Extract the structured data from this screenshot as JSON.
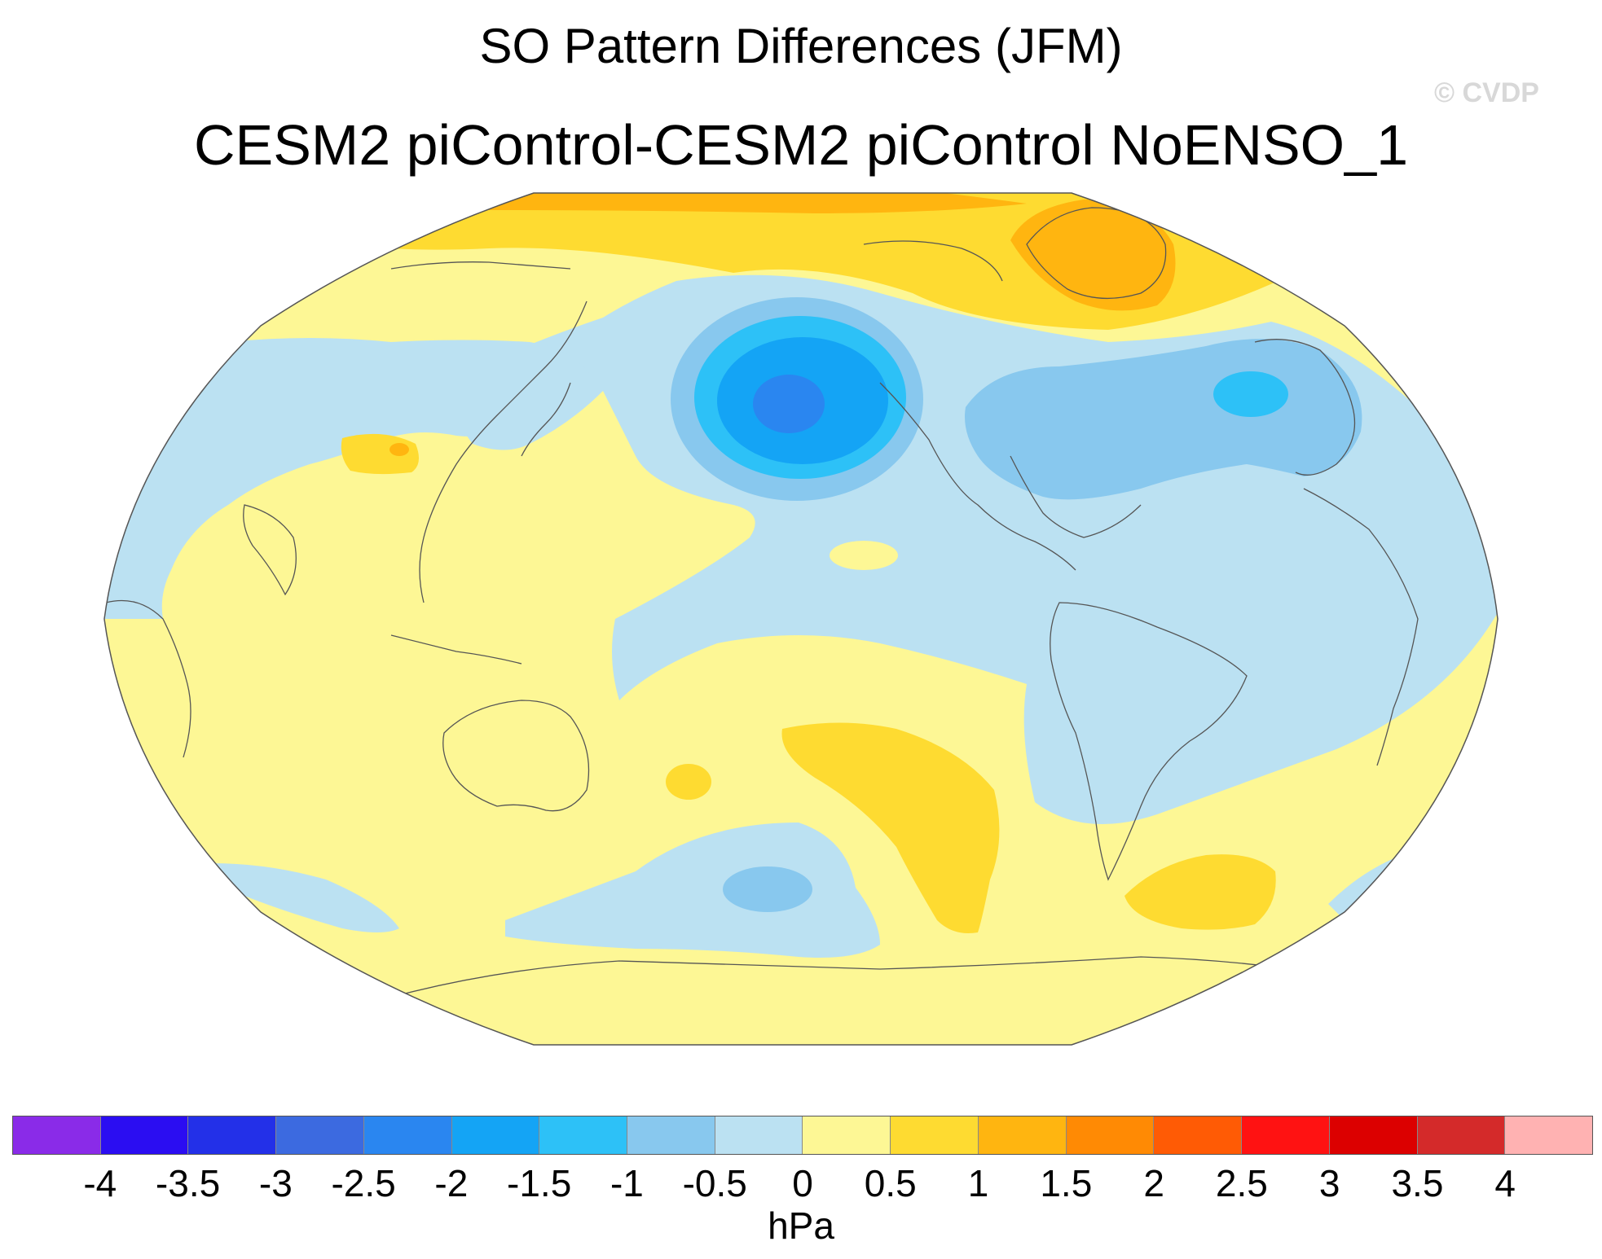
{
  "title": "SO Pattern Differences (JFM)",
  "subtitle": "CESM2 piControl-CESM2 piControl NoENSO_1",
  "watermark": "© CVDP",
  "colorbar": {
    "units": "hPa",
    "ticks": [
      "-4",
      "-3.5",
      "-3",
      "-2.5",
      "-2",
      "-1.5",
      "-1",
      "-0.5",
      "0",
      "0.5",
      "1",
      "1.5",
      "2",
      "2.5",
      "3",
      "3.5",
      "4"
    ],
    "colors": [
      "#8a2be8",
      "#2b0df2",
      "#2330e8",
      "#3c6ae0",
      "#2a86f0",
      "#14a4f5",
      "#2dc1f7",
      "#88c8ee",
      "#bbe1f2",
      "#fdf795",
      "#fedb31",
      "#ffb510",
      "#ff8a04",
      "#ff5b05",
      "#ff1212",
      "#dc0000",
      "#d42a2a",
      "#ffb2b2"
    ]
  },
  "map": {
    "projection": "robinson",
    "variable": "sea level pressure difference",
    "background_color": "#fdf795",
    "anomalies": [
      {
        "region": "Arctic north of Eurasia/Greenland",
        "level": 0.75,
        "color": "#fedb31"
      },
      {
        "region": "Greenland",
        "level": 1.25,
        "color": "#ffb510"
      },
      {
        "region": "North Pacific (Aleutian low)",
        "level": -2.0,
        "color": "#2a86f0"
      },
      {
        "region": "North Atlantic / eastern North America",
        "level": -0.75,
        "color": "#88c8ee"
      },
      {
        "region": "Eastern North Atlantic",
        "level": -1.25,
        "color": "#2dc1f7"
      },
      {
        "region": "Tropical/eastern Pacific and Americas",
        "level": -0.25,
        "color": "#bbe1f2"
      },
      {
        "region": "Tibetan Plateau",
        "level": 0.75,
        "color": "#fedb31"
      },
      {
        "region": "South Pacific",
        "level": 0.75,
        "color": "#fedb31"
      },
      {
        "region": "South Pacific high latitudes",
        "level": -0.75,
        "color": "#88c8ee"
      },
      {
        "region": "South Atlantic",
        "level": 0.75,
        "color": "#fedb31"
      }
    ]
  }
}
